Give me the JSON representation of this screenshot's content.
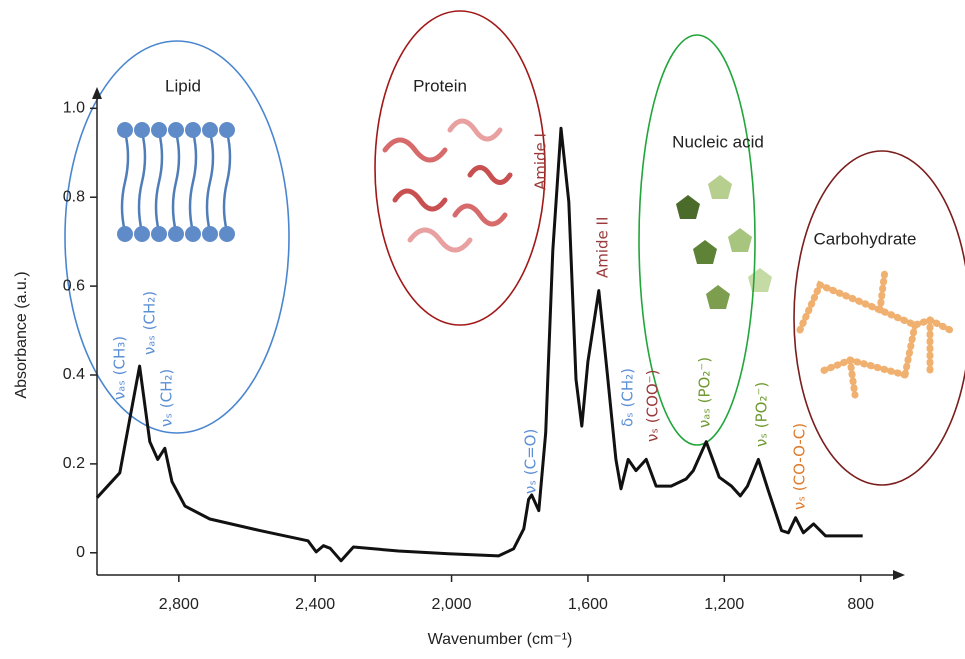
{
  "chart_data": {
    "type": "line",
    "x_label": "Wavenumber (cm⁻¹)",
    "y_label": "Absorbance (a.u.)",
    "xlim": [
      3040,
      670
    ],
    "ylim": [
      -0.05,
      1.03
    ],
    "xticks": [
      {
        "value": 2800,
        "label": "2,800"
      },
      {
        "value": 2400,
        "label": "2,400"
      },
      {
        "value": 2000,
        "label": "2,000"
      },
      {
        "value": 1600,
        "label": "1,600"
      },
      {
        "value": 1200,
        "label": "1,200"
      },
      800
    ],
    "yticks": [
      0,
      0.2,
      0.4,
      0.6,
      0.8,
      {
        "value": 1,
        "label": "1.0"
      }
    ],
    "color": "#111111",
    "x": [
      3040,
      2973,
      2944,
      2915,
      2885,
      2862,
      2841,
      2820,
      2782,
      2709,
      2562,
      2421,
      2397,
      2376,
      2356,
      2324,
      2288,
      2156,
      2009,
      1862,
      1818,
      1788,
      1774,
      1765,
      1744,
      1724,
      1703,
      1679,
      1656,
      1635,
      1618,
      1600,
      1568,
      1544,
      1518,
      1503,
      1482,
      1459,
      1429,
      1400,
      1356,
      1312,
      1291,
      1253,
      1215,
      1179,
      1153,
      1132,
      1100,
      1071,
      1032,
      1012,
      991,
      968,
      938,
      903,
      865,
      794
    ],
    "values": [
      0.124,
      0.18,
      0.3,
      0.42,
      0.25,
      0.21,
      0.235,
      0.16,
      0.105,
      0.076,
      0.05,
      0.027,
      0.002,
      0.016,
      0.01,
      -0.018,
      0.013,
      0.004,
      -0.002,
      -0.007,
      0.009,
      0.054,
      0.12,
      0.13,
      0.095,
      0.27,
      0.68,
      0.955,
      0.79,
      0.39,
      0.285,
      0.43,
      0.59,
      0.41,
      0.21,
      0.144,
      0.21,
      0.185,
      0.21,
      0.15,
      0.15,
      0.166,
      0.185,
      0.25,
      0.17,
      0.15,
      0.128,
      0.15,
      0.21,
      0.14,
      0.05,
      0.045,
      0.079,
      0.045,
      0.065,
      0.038,
      0.038,
      0.038
    ],
    "regions": [
      {
        "label": "Lipid",
        "color": "#4a86d0"
      },
      {
        "label": "Protein",
        "color": "#a01818"
      },
      {
        "label": "Nucleic acid",
        "color": "#22a53a"
      },
      {
        "label": "Carbohydrate",
        "color": "#7a1d1d"
      }
    ],
    "annotations": [
      {
        "text": "νₐₛ (CH₃)",
        "color": "#5b8fd6"
      },
      {
        "text": "νₐₛ (CH₂)",
        "color": "#5b8fd6"
      },
      {
        "text": "νₛ (CH₂)",
        "color": "#5b8fd6"
      },
      {
        "text": "νₛ (C=O)",
        "color": "#5b8fd6"
      },
      {
        "text": "Amide I",
        "color": "#9a3a3a"
      },
      {
        "text": "Amide II",
        "color": "#9a3a3a"
      },
      {
        "text": "δₛ (CH₂)",
        "color": "#5b8fd6"
      },
      {
        "text": "νₛ (COO⁻)",
        "color": "#9a3a3a"
      },
      {
        "text": "νₐₛ (PO₂⁻)",
        "color": "#6f9a30"
      },
      {
        "text": "νₛ (PO₂⁻)",
        "color": "#6f9a30"
      },
      {
        "text": "νₛ (CO-O-C)",
        "color": "#e07a2a"
      }
    ]
  }
}
